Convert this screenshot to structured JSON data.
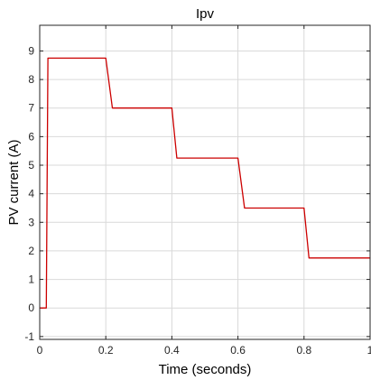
{
  "chart_data": {
    "type": "line",
    "title": "Ipv",
    "xlabel": "Time (seconds)",
    "ylabel": "PV current (A)",
    "xlim": [
      0,
      1
    ],
    "ylim": [
      -1.1,
      9.9
    ],
    "xticks": [
      0,
      0.2,
      0.4,
      0.6,
      0.8,
      1
    ],
    "xtick_labels": [
      "0",
      "0.2",
      "0.4",
      "0.6",
      "0.8",
      "1"
    ],
    "yticks": [
      -1,
      0,
      1,
      2,
      3,
      4,
      5,
      6,
      7,
      8,
      9
    ],
    "ytick_labels": [
      "-1",
      "0",
      "1",
      "2",
      "3",
      "4",
      "5",
      "6",
      "7",
      "8",
      "9"
    ],
    "grid": true,
    "series": [
      {
        "color": "#cc0000",
        "x": [
          0,
          0.02,
          0.025,
          0.2,
          0.22,
          0.4,
          0.415,
          0.6,
          0.62,
          0.8,
          0.815,
          1
        ],
        "y": [
          0,
          0,
          8.75,
          8.75,
          7.0,
          7.0,
          5.25,
          5.25,
          3.5,
          3.5,
          1.75,
          1.75
        ]
      }
    ]
  }
}
